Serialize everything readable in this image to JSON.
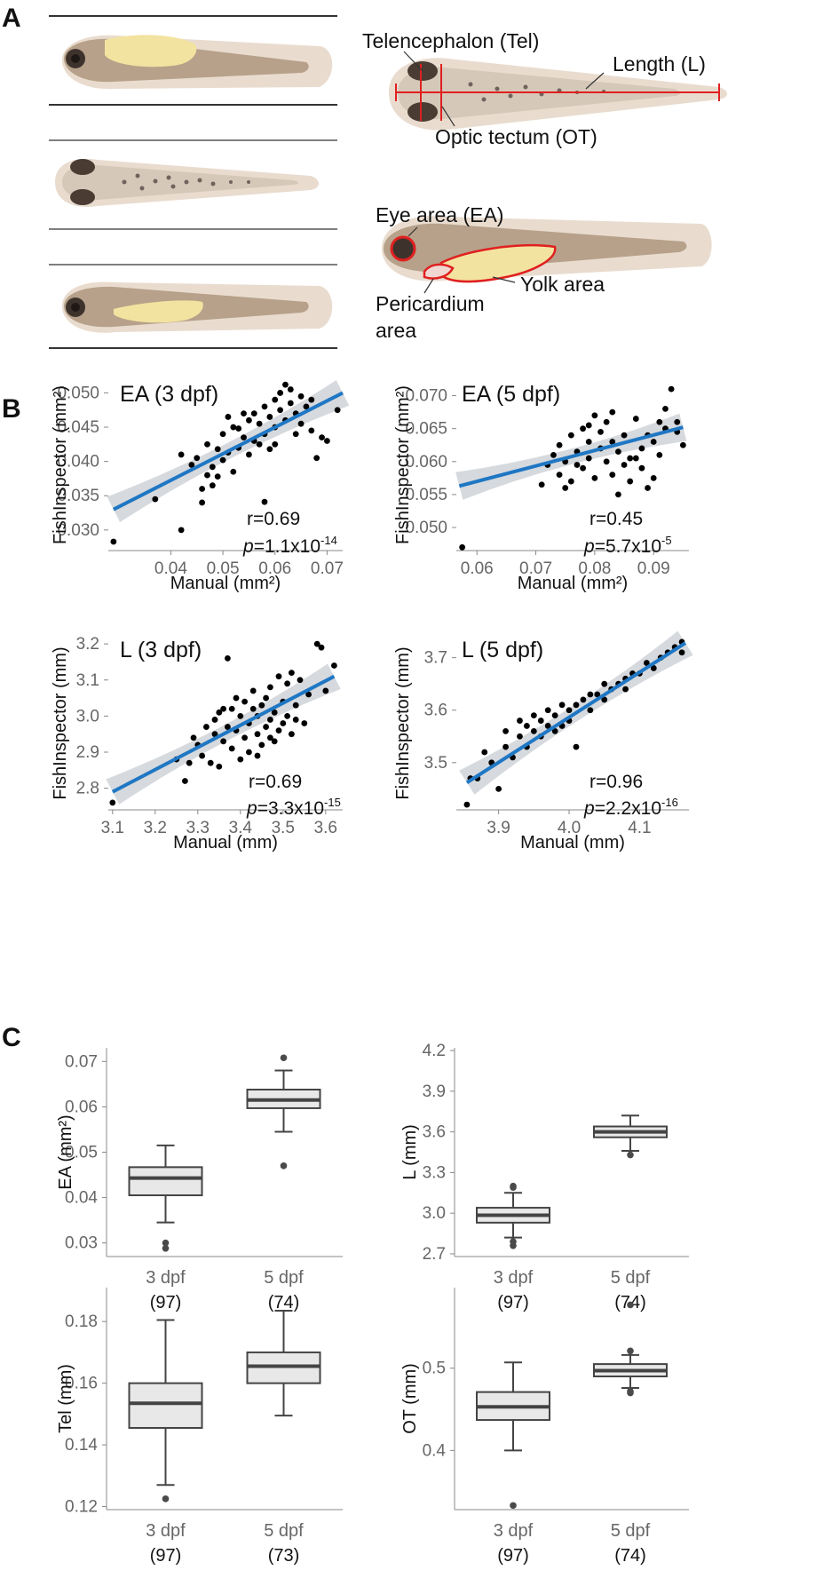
{
  "panels": {
    "a": "A",
    "b": "B",
    "c": "C"
  },
  "schematic": {
    "labels": {
      "telencephalon": "Telencephalon (Tel)",
      "length": "Length (L)",
      "optic_tectum": "Optic tectum (OT)",
      "eye_area": "Eye area (EA)",
      "yolk_area": "Yolk area",
      "pericardium_line1": "Pericardium",
      "pericardium_line2": "area"
    },
    "colors": {
      "body": "#b7a18a",
      "fin": "#e8d9cc",
      "yolk": "#f3e3a0",
      "eye": "#3e332c",
      "highlight": "#e02020",
      "rule": "#333333"
    }
  },
  "chart_data": [
    {
      "id": "ea3",
      "type": "scatter",
      "title": "EA (3 dpf)",
      "xlabel": "Manual (mm²)",
      "ylabel": "FishInspector (mm²)",
      "xlim": [
        0.028,
        0.073
      ],
      "ylim": [
        0.027,
        0.052
      ],
      "xticks": [
        0.04,
        0.05,
        0.06,
        0.07
      ],
      "yticks": [
        0.03,
        0.035,
        0.04,
        0.045,
        0.05
      ],
      "xtick_labels": [
        "0.04",
        "0.05",
        "0.06",
        "0.07"
      ],
      "ytick_labels": [
        "0.030",
        "0.035",
        "0.040",
        "0.045",
        "0.050"
      ],
      "fit": {
        "x": [
          0.029,
          0.073
        ],
        "y": [
          0.033,
          0.05
        ]
      },
      "r_text": "r=0.69",
      "p_label": "p",
      "p_value": "=1.1x10",
      "p_exp": "-14",
      "points": [
        [
          0.029,
          0.0283
        ],
        [
          0.042,
          0.03
        ],
        [
          0.037,
          0.0345
        ],
        [
          0.058,
          0.0341
        ],
        [
          0.046,
          0.034
        ],
        [
          0.042,
          0.041
        ],
        [
          0.047,
          0.038
        ],
        [
          0.044,
          0.0395
        ],
        [
          0.045,
          0.0405
        ],
        [
          0.048,
          0.0392
        ],
        [
          0.049,
          0.0378
        ],
        [
          0.05,
          0.0402
        ],
        [
          0.051,
          0.0413
        ],
        [
          0.052,
          0.0385
        ],
        [
          0.05,
          0.044
        ],
        [
          0.052,
          0.045
        ],
        [
          0.053,
          0.042
        ],
        [
          0.054,
          0.0435
        ],
        [
          0.055,
          0.046
        ],
        [
          0.055,
          0.041
        ],
        [
          0.056,
          0.047
        ],
        [
          0.056,
          0.043
        ],
        [
          0.057,
          0.0455
        ],
        [
          0.058,
          0.048
        ],
        [
          0.058,
          0.044
        ],
        [
          0.059,
          0.0465
        ],
        [
          0.06,
          0.049
        ],
        [
          0.06,
          0.045
        ],
        [
          0.061,
          0.0475
        ],
        [
          0.061,
          0.05
        ],
        [
          0.062,
          0.046
        ],
        [
          0.062,
          0.0512
        ],
        [
          0.063,
          0.0485
        ],
        [
          0.063,
          0.0505
        ],
        [
          0.064,
          0.047
        ],
        [
          0.065,
          0.0495
        ],
        [
          0.065,
          0.0455
        ],
        [
          0.066,
          0.048
        ],
        [
          0.067,
          0.0445
        ],
        [
          0.068,
          0.0405
        ],
        [
          0.069,
          0.0435
        ],
        [
          0.07,
          0.043
        ],
        [
          0.072,
          0.0475
        ],
        [
          0.047,
          0.0425
        ],
        [
          0.049,
          0.0418
        ],
        [
          0.053,
          0.0448
        ],
        [
          0.057,
          0.0425
        ],
        [
          0.059,
          0.0418
        ],
        [
          0.054,
          0.047
        ],
        [
          0.051,
          0.0465
        ],
        [
          0.046,
          0.036
        ],
        [
          0.048,
          0.0365
        ],
        [
          0.064,
          0.044
        ],
        [
          0.06,
          0.0425
        ],
        [
          0.067,
          0.049
        ]
      ]
    },
    {
      "id": "ea5",
      "type": "scatter",
      "title": "EA (5 dpf)",
      "xlabel": "Manual (mm²)",
      "ylabel": "FishInspector (mm²)",
      "xlim": [
        0.0565,
        0.096
      ],
      "ylim": [
        0.0465,
        0.0725
      ],
      "xticks": [
        0.06,
        0.07,
        0.08,
        0.09
      ],
      "yticks": [
        0.05,
        0.055,
        0.06,
        0.065,
        0.07
      ],
      "xtick_labels": [
        "0.06",
        "0.07",
        "0.08",
        "0.09"
      ],
      "ytick_labels": [
        "0.050",
        "0.055",
        "0.060",
        "0.065",
        "0.070"
      ],
      "fit": {
        "x": [
          0.057,
          0.095
        ],
        "y": [
          0.0563,
          0.0652
        ]
      },
      "r_text": "r=0.45",
      "p_label": "p",
      "p_value": "=5.7x10",
      "p_exp": "-5",
      "points": [
        [
          0.0575,
          0.047
        ],
        [
          0.071,
          0.0565
        ],
        [
          0.072,
          0.0595
        ],
        [
          0.073,
          0.061
        ],
        [
          0.074,
          0.058
        ],
        [
          0.074,
          0.0625
        ],
        [
          0.075,
          0.06
        ],
        [
          0.076,
          0.064
        ],
        [
          0.076,
          0.057
        ],
        [
          0.077,
          0.0615
        ],
        [
          0.078,
          0.065
        ],
        [
          0.078,
          0.059
        ],
        [
          0.079,
          0.063
        ],
        [
          0.079,
          0.0605
        ],
        [
          0.08,
          0.067
        ],
        [
          0.08,
          0.0575
        ],
        [
          0.081,
          0.062
        ],
        [
          0.081,
          0.0645
        ],
        [
          0.082,
          0.06
        ],
        [
          0.082,
          0.066
        ],
        [
          0.083,
          0.058
        ],
        [
          0.083,
          0.063
        ],
        [
          0.084,
          0.0615
        ],
        [
          0.084,
          0.055
        ],
        [
          0.085,
          0.064
        ],
        [
          0.086,
          0.0605
        ],
        [
          0.086,
          0.057
        ],
        [
          0.087,
          0.0665
        ],
        [
          0.088,
          0.062
        ],
        [
          0.088,
          0.059
        ],
        [
          0.089,
          0.064
        ],
        [
          0.09,
          0.0575
        ],
        [
          0.09,
          0.063
        ],
        [
          0.091,
          0.061
        ],
        [
          0.092,
          0.068
        ],
        [
          0.092,
          0.065
        ],
        [
          0.093,
          0.071
        ],
        [
          0.094,
          0.0645
        ],
        [
          0.095,
          0.0625
        ],
        [
          0.094,
          0.066
        ],
        [
          0.075,
          0.056
        ],
        [
          0.077,
          0.0595
        ],
        [
          0.079,
          0.0655
        ],
        [
          0.083,
          0.0675
        ],
        [
          0.085,
          0.0595
        ],
        [
          0.087,
          0.0605
        ],
        [
          0.089,
          0.056
        ],
        [
          0.091,
          0.066
        ]
      ]
    },
    {
      "id": "l3",
      "type": "scatter",
      "title": "L (3 dpf)",
      "xlabel": "Manual (mm)",
      "ylabel": "FishInspector (mm)",
      "xlim": [
        3.09,
        3.64
      ],
      "ylim": [
        2.74,
        3.22
      ],
      "xticks": [
        3.1,
        3.2,
        3.3,
        3.4,
        3.5,
        3.6
      ],
      "yticks": [
        2.8,
        2.9,
        3.0,
        3.1,
        3.2
      ],
      "xtick_labels": [
        "3.1",
        "3.2",
        "3.3",
        "3.4",
        "3.5",
        "3.6"
      ],
      "ytick_labels": [
        "2.8",
        "2.9",
        "3.0",
        "3.1",
        "3.2"
      ],
      "fit": {
        "x": [
          3.1,
          3.62
        ],
        "y": [
          2.79,
          3.11
        ]
      },
      "r_text": "r=0.69",
      "p_label": "p",
      "p_value": "=3.3x10",
      "p_exp": "-15",
      "points": [
        [
          3.1,
          2.76
        ],
        [
          3.25,
          2.88
        ],
        [
          3.27,
          2.82
        ],
        [
          3.29,
          2.94
        ],
        [
          3.3,
          2.92
        ],
        [
          3.31,
          2.89
        ],
        [
          3.32,
          2.97
        ],
        [
          3.33,
          2.87
        ],
        [
          3.34,
          2.95
        ],
        [
          3.34,
          2.99
        ],
        [
          3.35,
          2.86
        ],
        [
          3.35,
          3.01
        ],
        [
          3.36,
          2.93
        ],
        [
          3.37,
          2.97
        ],
        [
          3.37,
          3.16
        ],
        [
          3.38,
          2.91
        ],
        [
          3.38,
          3.02
        ],
        [
          3.39,
          2.96
        ],
        [
          3.4,
          2.88
        ],
        [
          3.4,
          3.0
        ],
        [
          3.41,
          2.94
        ],
        [
          3.41,
          3.04
        ],
        [
          3.42,
          2.9
        ],
        [
          3.42,
          2.98
        ],
        [
          3.43,
          3.02
        ],
        [
          3.43,
          3.07
        ],
        [
          3.44,
          2.95
        ],
        [
          3.44,
          3.0
        ],
        [
          3.45,
          2.92
        ],
        [
          3.45,
          3.03
        ],
        [
          3.46,
          2.97
        ],
        [
          3.46,
          3.05
        ],
        [
          3.47,
          2.99
        ],
        [
          3.47,
          3.08
        ],
        [
          3.48,
          2.93
        ],
        [
          3.48,
          3.01
        ],
        [
          3.49,
          3.11
        ],
        [
          3.49,
          2.96
        ],
        [
          3.5,
          3.04
        ],
        [
          3.5,
          2.98
        ],
        [
          3.51,
          3.09
        ],
        [
          3.51,
          3.0
        ],
        [
          3.52,
          3.12
        ],
        [
          3.52,
          2.95
        ],
        [
          3.53,
          3.03
        ],
        [
          3.54,
          3.1
        ],
        [
          3.55,
          2.98
        ],
        [
          3.56,
          3.06
        ],
        [
          3.58,
          3.2
        ],
        [
          3.59,
          3.19
        ],
        [
          3.6,
          3.07
        ],
        [
          3.62,
          3.14
        ],
        [
          3.28,
          2.87
        ],
        [
          3.36,
          3.02
        ],
        [
          3.44,
          2.89
        ],
        [
          3.47,
          2.94
        ],
        [
          3.53,
          2.99
        ],
        [
          3.39,
          3.05
        ]
      ]
    },
    {
      "id": "l5",
      "type": "scatter",
      "title": "L (5 dpf)",
      "xlabel": "Manual (mm)",
      "ylabel": "FishInspector (mm)",
      "xlim": [
        3.84,
        4.17
      ],
      "ylim": [
        3.41,
        3.74
      ],
      "xticks": [
        3.9,
        4.0,
        4.1
      ],
      "yticks": [
        3.5,
        3.6,
        3.7
      ],
      "xtick_labels": [
        "3.9",
        "4.0",
        "4.1"
      ],
      "ytick_labels": [
        "3.5",
        "3.6",
        "3.7"
      ],
      "fit": {
        "x": [
          3.855,
          4.165
        ],
        "y": [
          3.462,
          3.728
        ]
      },
      "r_text": "r=0.96",
      "p_label": "p",
      "p_value": "=2.2x10",
      "p_exp": "-16",
      "points": [
        [
          3.855,
          3.42
        ],
        [
          3.86,
          3.47
        ],
        [
          3.87,
          3.47
        ],
        [
          3.88,
          3.52
        ],
        [
          3.89,
          3.5
        ],
        [
          3.9,
          3.45
        ],
        [
          3.91,
          3.53
        ],
        [
          3.91,
          3.56
        ],
        [
          3.92,
          3.51
        ],
        [
          3.93,
          3.55
        ],
        [
          3.94,
          3.53
        ],
        [
          3.94,
          3.57
        ],
        [
          3.95,
          3.56
        ],
        [
          3.95,
          3.59
        ],
        [
          3.96,
          3.55
        ],
        [
          3.96,
          3.58
        ],
        [
          3.97,
          3.57
        ],
        [
          3.97,
          3.6
        ],
        [
          3.98,
          3.59
        ],
        [
          3.98,
          3.56
        ],
        [
          3.99,
          3.61
        ],
        [
          4.0,
          3.58
        ],
        [
          4.0,
          3.6
        ],
        [
          4.01,
          3.61
        ],
        [
          4.01,
          3.53
        ],
        [
          4.02,
          3.62
        ],
        [
          4.03,
          3.6
        ],
        [
          4.04,
          3.63
        ],
        [
          4.05,
          3.62
        ],
        [
          4.05,
          3.65
        ],
        [
          4.06,
          3.64
        ],
        [
          4.07,
          3.65
        ],
        [
          4.08,
          3.66
        ],
        [
          4.09,
          3.67
        ],
        [
          4.1,
          3.67
        ],
        [
          4.11,
          3.69
        ],
        [
          4.12,
          3.68
        ],
        [
          4.13,
          3.7
        ],
        [
          4.14,
          3.71
        ],
        [
          4.15,
          3.72
        ],
        [
          4.16,
          3.73
        ],
        [
          4.16,
          3.71
        ],
        [
          3.93,
          3.58
        ],
        [
          3.99,
          3.57
        ],
        [
          4.03,
          3.63
        ],
        [
          4.08,
          3.64
        ]
      ]
    },
    {
      "id": "bea",
      "type": "box",
      "ylabel": "EA (mm²)",
      "ylim": [
        0.027,
        0.073
      ],
      "yticks": [
        0.03,
        0.04,
        0.05,
        0.06,
        0.07
      ],
      "ytick_labels": [
        "0.03",
        "0.04",
        "0.05",
        "0.06",
        "0.07"
      ],
      "categories": [
        "3 dpf",
        "5 dpf"
      ],
      "n": [
        "(97)",
        "(74)"
      ],
      "fill": "#e8e8e8",
      "boxes": [
        {
          "q1": 0.0405,
          "median": 0.0443,
          "q3": 0.0467,
          "wlo": 0.0345,
          "whi": 0.0515,
          "outliers": [
            0.03,
            0.0288
          ]
        },
        {
          "q1": 0.0597,
          "median": 0.0615,
          "q3": 0.0638,
          "wlo": 0.0545,
          "whi": 0.068,
          "outliers": [
            0.0708,
            0.047
          ]
        }
      ]
    },
    {
      "id": "bl",
      "type": "box",
      "ylabel": "L (mm)",
      "ylim": [
        2.68,
        4.22
      ],
      "yticks": [
        2.7,
        3.0,
        3.3,
        3.6,
        3.9,
        4.2
      ],
      "ytick_labels": [
        "2.7",
        "3.0",
        "3.3",
        "3.6",
        "3.9",
        "4.2"
      ],
      "categories": [
        "3 dpf",
        "5 dpf"
      ],
      "n": [
        "(97)",
        "(74)"
      ],
      "fill": "#e8e8e8",
      "boxes": [
        {
          "q1": 2.93,
          "median": 2.985,
          "q3": 3.04,
          "wlo": 2.82,
          "whi": 3.15,
          "outliers": [
            3.2,
            3.19,
            2.79,
            2.76
          ]
        },
        {
          "q1": 3.56,
          "median": 3.6,
          "q3": 3.64,
          "wlo": 3.46,
          "whi": 3.72,
          "outliers": [
            3.43
          ]
        }
      ]
    },
    {
      "id": "btel",
      "type": "box",
      "ylabel": "Tel (mm)",
      "ylim": [
        0.119,
        0.191
      ],
      "yticks": [
        0.12,
        0.14,
        0.16,
        0.18
      ],
      "ytick_labels": [
        "0.12",
        "0.14",
        "0.16",
        "0.18"
      ],
      "categories": [
        "3 dpf",
        "5 dpf"
      ],
      "n": [
        "(97)",
        "(73)"
      ],
      "fill": "#e8e8e8",
      "boxes": [
        {
          "q1": 0.1455,
          "median": 0.1535,
          "q3": 0.16,
          "wlo": 0.127,
          "whi": 0.1805,
          "outliers": [
            0.1225
          ]
        },
        {
          "q1": 0.16,
          "median": 0.1655,
          "q3": 0.17,
          "wlo": 0.1495,
          "whi": 0.1835,
          "outliers": []
        }
      ]
    },
    {
      "id": "bot",
      "type": "box",
      "ylabel": "OT (mm)",
      "ylim": [
        0.328,
        0.598
      ],
      "yticks": [
        0.4,
        0.5
      ],
      "ytick_labels": [
        "0.4",
        "0.5"
      ],
      "categories": [
        "3 dpf",
        "5 dpf"
      ],
      "n": [
        "(97)",
        "(74)"
      ],
      "fill": "#e8e8e8",
      "boxes": [
        {
          "q1": 0.437,
          "median": 0.453,
          "q3": 0.471,
          "wlo": 0.4,
          "whi": 0.507,
          "outliers": [
            0.333
          ]
        },
        {
          "q1": 0.49,
          "median": 0.497,
          "q3": 0.505,
          "wlo": 0.476,
          "whi": 0.516,
          "outliers": [
            0.577,
            0.521,
            0.472,
            0.47
          ]
        }
      ]
    }
  ]
}
